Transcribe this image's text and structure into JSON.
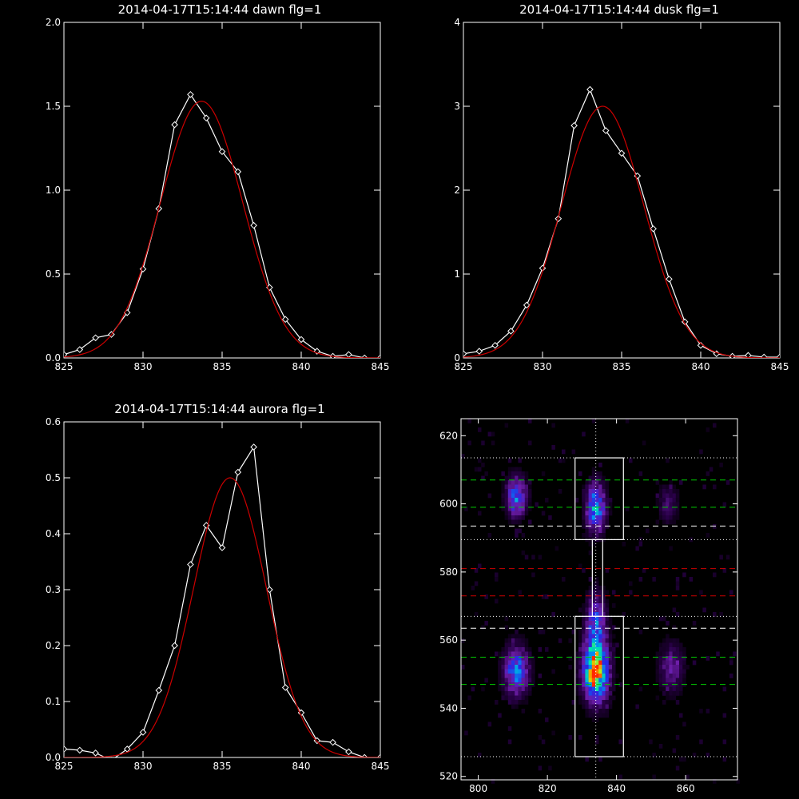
{
  "chart_data": [
    {
      "type": "line",
      "title": "2014-04-17T15:14:44 dawn flg=1",
      "xlim": [
        825,
        845
      ],
      "ylim": [
        0,
        2.0
      ],
      "xticks": [
        "825",
        "830",
        "835",
        "840",
        "845"
      ],
      "yticks": [
        "0.0",
        "0.5",
        "1.0",
        "1.5",
        "2.0"
      ],
      "series": [
        {
          "color": "#ffffff",
          "marker": "diamond",
          "x": [
            825,
            826,
            827,
            828,
            829,
            830,
            831,
            832,
            833,
            834,
            835,
            836,
            837,
            838,
            839,
            840,
            841,
            842,
            843,
            844,
            845
          ],
          "y": [
            0.02,
            0.05,
            0.12,
            0.14,
            0.27,
            0.53,
            0.89,
            1.39,
            1.57,
            1.43,
            1.23,
            1.11,
            0.79,
            0.42,
            0.23,
            0.11,
            0.04,
            0.01,
            0.02,
            0.0,
            0.0
          ]
        },
        {
          "color": "#cc0000",
          "gauss": {
            "amp": 1.53,
            "mu": 833.7,
            "sigma": 2.6,
            "base": 0.0
          }
        }
      ]
    },
    {
      "type": "line",
      "title": "2014-04-17T15:14:44 dusk flg=1",
      "xlim": [
        825,
        845
      ],
      "ylim": [
        0,
        4
      ],
      "xticks": [
        "825",
        "830",
        "835",
        "840",
        "845"
      ],
      "yticks": [
        "0",
        "1",
        "2",
        "3",
        "4"
      ],
      "series": [
        {
          "color": "#ffffff",
          "marker": "diamond",
          "x": [
            825,
            826,
            827,
            828,
            829,
            830,
            831,
            832,
            833,
            834,
            835,
            836,
            837,
            838,
            839,
            840,
            841,
            842,
            843,
            844,
            845
          ],
          "y": [
            0.05,
            0.08,
            0.15,
            0.32,
            0.63,
            1.07,
            1.66,
            2.77,
            3.2,
            2.71,
            2.44,
            2.17,
            1.54,
            0.94,
            0.43,
            0.15,
            0.05,
            0.02,
            0.03,
            0.01,
            0.01
          ]
        },
        {
          "color": "#cc0000",
          "gauss": {
            "amp": 3.0,
            "mu": 833.8,
            "sigma": 2.6,
            "base": 0.0
          }
        }
      ]
    },
    {
      "type": "line",
      "title": "2014-04-17T15:14:44 aurora flg=1",
      "xlim": [
        825,
        845
      ],
      "ylim": [
        0,
        0.6
      ],
      "xticks": [
        "825",
        "830",
        "835",
        "840",
        "845"
      ],
      "yticks": [
        "0.0",
        "0.1",
        "0.2",
        "0.3",
        "0.4",
        "0.5",
        "0.6"
      ],
      "series": [
        {
          "color": "#ffffff",
          "marker": "diamond",
          "x": [
            825,
            826,
            827,
            828,
            829,
            830,
            831,
            832,
            833,
            834,
            835,
            836,
            837,
            838,
            839,
            840,
            841,
            842,
            843,
            844,
            845
          ],
          "y": [
            0.015,
            0.013,
            0.008,
            -0.005,
            0.015,
            0.045,
            0.12,
            0.2,
            0.345,
            0.415,
            0.375,
            0.51,
            0.555,
            0.3,
            0.125,
            0.08,
            0.03,
            0.027,
            0.01,
            0.0,
            0.0
          ]
        },
        {
          "color": "#cc0000",
          "gauss": {
            "amp": 0.5,
            "mu": 835.5,
            "sigma": 2.3,
            "base": 0.0
          }
        }
      ]
    },
    {
      "type": "heatmap",
      "title": "",
      "xlim": [
        795,
        875
      ],
      "ylim": [
        519,
        625
      ],
      "xticks": [
        "800",
        "820",
        "840",
        "860"
      ],
      "yticks": [
        "520",
        "540",
        "560",
        "580",
        "600",
        "620"
      ],
      "blobs": [
        {
          "x": 811,
          "y": 602,
          "sx": 2.0,
          "sy": 4.0,
          "amp": 0.55
        },
        {
          "x": 811,
          "y": 551,
          "sx": 2.5,
          "sy": 5.0,
          "amp": 0.55
        },
        {
          "x": 834,
          "y": 599,
          "sx": 2.0,
          "sy": 5.0,
          "amp": 0.6
        },
        {
          "x": 834,
          "y": 551,
          "sx": 2.5,
          "sy": 6.0,
          "amp": 1.0
        },
        {
          "x": 834,
          "y": 565,
          "sx": 2.0,
          "sy": 6.0,
          "amp": 0.45
        },
        {
          "x": 855,
          "y": 600,
          "sx": 2.0,
          "sy": 4.0,
          "amp": 0.2
        },
        {
          "x": 856,
          "y": 552,
          "sx": 2.5,
          "sy": 5.0,
          "amp": 0.28
        }
      ],
      "vline_x": 834,
      "dotted_y": [
        613.5,
        589.5,
        567,
        525.8
      ],
      "green_dashed_y": [
        607,
        599,
        555,
        547
      ],
      "white_dashed_y": [
        593.5,
        563.5
      ],
      "red_dashed_y": [
        581,
        573
      ],
      "boxes": [
        {
          "x": [
            828,
            842
          ],
          "y": [
            589.5,
            613.5
          ]
        },
        {
          "x": [
            828,
            842
          ],
          "y": [
            525.8,
            567
          ]
        },
        {
          "x": [
            833,
            836
          ],
          "y": [
            567,
            589.5
          ]
        }
      ]
    }
  ]
}
